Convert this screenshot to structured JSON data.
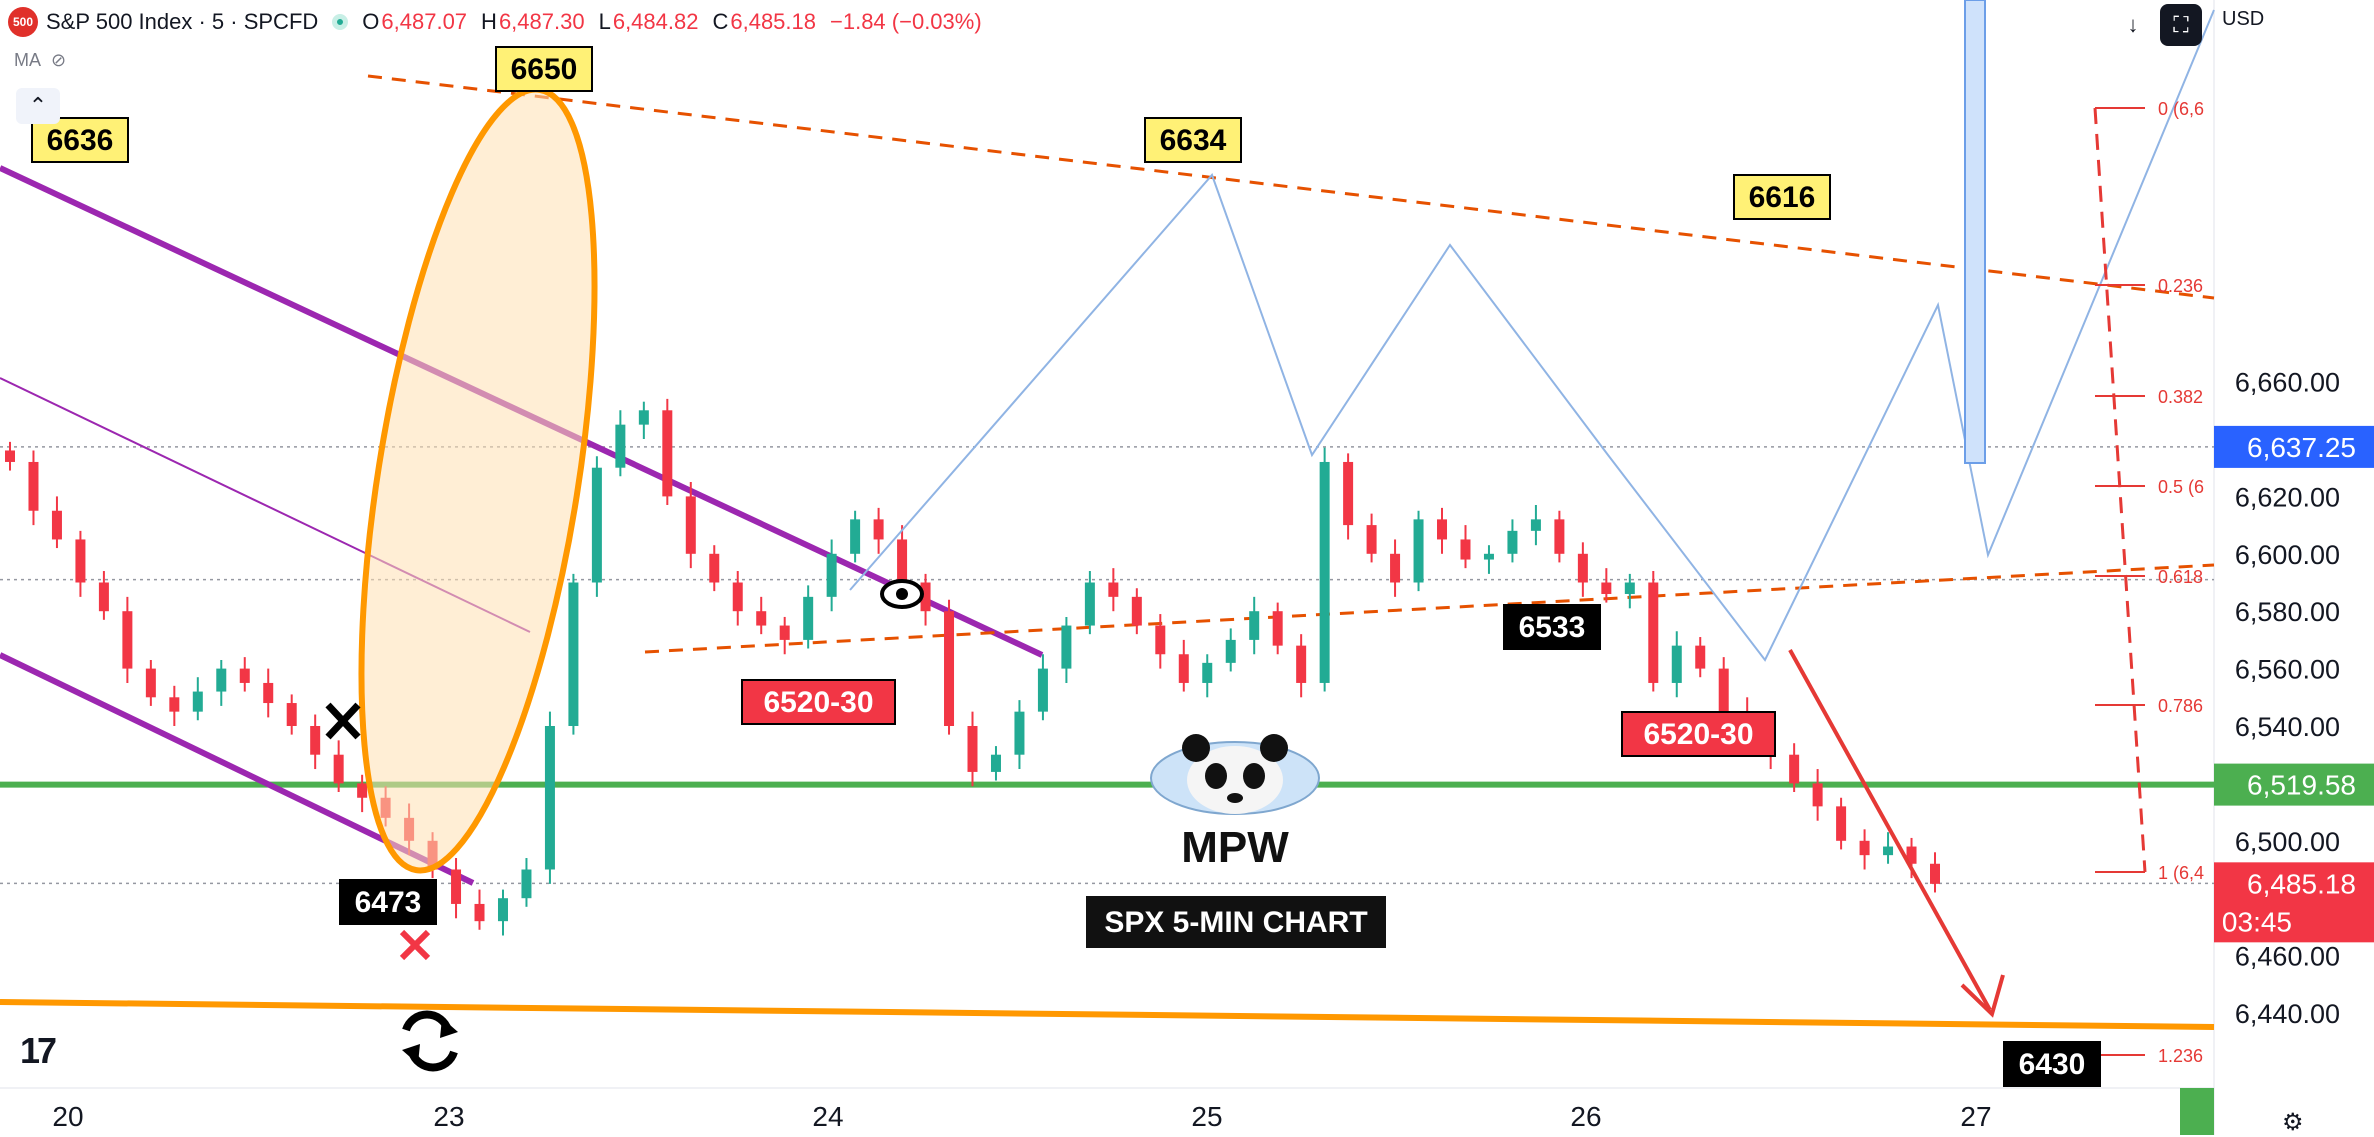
{
  "header": {
    "symbol_badge": "500",
    "title": "S&P 500 Index · 5 · SPCFD",
    "o_label": "O",
    "o_value": "6,487.07",
    "h_label": "H",
    "h_value": "6,487.30",
    "l_label": "L",
    "l_value": "6,484.82",
    "c_label": "C",
    "c_value": "6,485.18",
    "change": "−1.84 (−0.03%)"
  },
  "indicator_label": "MA",
  "currency": "USD",
  "colors": {
    "up": "#22ab94",
    "down": "#f23645",
    "green_line": "#4caf50",
    "purple": "#9c27b0",
    "orange": "#ff9800",
    "orange_dash": "#e65100",
    "fib": "#e53935",
    "yellow_label": "#fff176",
    "red_label": "#f23645",
    "path": "#90b4e4",
    "price_label": "#2962ff"
  },
  "chart_data": {
    "type": "candlestick",
    "title": "SPX 5-MIN CHART",
    "watermark": "MPW",
    "x_ticks": [
      "20",
      "23",
      "24",
      "25",
      "26",
      "27"
    ],
    "y_ticks": [
      "6,440.00",
      "6,460.00",
      "6,480.00",
      "6,500.00",
      "6,520.00",
      "6,540.00",
      "6,560.00",
      "6,580.00",
      "6,600.00",
      "6,620.00",
      "6,640.00",
      "6,660.00"
    ],
    "ylim": [
      6430,
      6663
    ],
    "price_axis_labels": [
      {
        "value": 6637.25,
        "text": "6,637.25"
      },
      {
        "value": 6519.58,
        "text": "6,519.58"
      },
      {
        "value": 6485.18,
        "text": "6,485.18",
        "countdown": "03:45"
      }
    ],
    "candles_approx_close": [
      6632,
      6615,
      6605,
      6590,
      6580,
      6560,
      6550,
      6545,
      6552,
      6560,
      6555,
      6548,
      6540,
      6530,
      6520,
      6515,
      6508,
      6500,
      6490,
      6478,
      6472,
      6480,
      6490,
      6540,
      6590,
      6630,
      6645,
      6650,
      6620,
      6600,
      6590,
      6580,
      6575,
      6570,
      6585,
      6600,
      6612,
      6605,
      6590,
      6580,
      6540,
      6524,
      6530,
      6545,
      6560,
      6575,
      6590,
      6585,
      6575,
      6565,
      6555,
      6562,
      6570,
      6580,
      6568,
      6555,
      6632,
      6610,
      6600,
      6590,
      6612,
      6605,
      6598,
      6600,
      6608,
      6612,
      6600,
      6590,
      6586,
      6590,
      6555,
      6568,
      6560,
      6545,
      6540,
      6530,
      6520,
      6512,
      6500,
      6495,
      6498,
      6492,
      6485
    ],
    "level_labels": [
      {
        "text": "6636",
        "style": "yellow",
        "value": 6636
      },
      {
        "text": "6650",
        "style": "yellow",
        "value": 6650
      },
      {
        "text": "6634",
        "style": "yellow",
        "value": 6634
      },
      {
        "text": "6616",
        "style": "yellow",
        "value": 6616
      },
      {
        "text": "6520-30",
        "style": "red",
        "value": 6525
      },
      {
        "text": "6520-30",
        "style": "red",
        "value": 6525
      },
      {
        "text": "6533",
        "style": "black",
        "value": 6533
      },
      {
        "text": "6473",
        "style": "black",
        "value": 6473
      },
      {
        "text": "6430",
        "style": "black",
        "value": 6430
      }
    ],
    "horizontal_lines": [
      {
        "value": 6519.58,
        "color": "green",
        "style": "solid"
      },
      {
        "value": 6637.25,
        "color": "gray",
        "style": "dotted"
      },
      {
        "value": 6591,
        "color": "gray",
        "style": "dotted"
      },
      {
        "value": 6485.18,
        "color": "gray",
        "style": "dotted"
      }
    ],
    "fib_levels": [
      {
        "ratio": "0",
        "label": "0 (6,6"
      },
      {
        "ratio": "0.236",
        "label": "0.236"
      },
      {
        "ratio": "0.382",
        "label": "0.382"
      },
      {
        "ratio": "0.5",
        "label": "0.5 (6"
      },
      {
        "ratio": "0.618",
        "label": "0.618"
      },
      {
        "ratio": "0.786",
        "label": "0.786"
      },
      {
        "ratio": "1",
        "label": "1 (6,4"
      },
      {
        "ratio": "1.236",
        "label": "1.236"
      }
    ],
    "grid": false
  }
}
